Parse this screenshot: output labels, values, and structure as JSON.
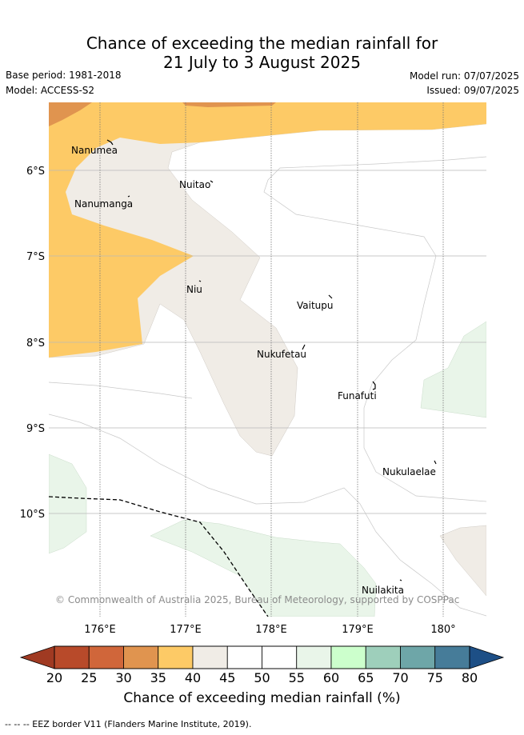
{
  "title_line1": "Chance of exceeding the median rainfall for",
  "title_line2": "21 July to 3 August 2025",
  "meta": {
    "base_period": "Base period: 1981-2018",
    "model": "Model: ACCESS-S2",
    "model_run": "Model run: 07/07/2025",
    "issued": "Issued: 09/07/2025"
  },
  "map": {
    "lat_labels": [
      "6°S",
      "7°S",
      "8°S",
      "9°S",
      "10°S"
    ],
    "lon_labels": [
      "176°E",
      "177°E",
      "178°E",
      "179°E",
      "180°"
    ],
    "places": [
      "Nanumea",
      "Nuitao",
      "Nanumanga",
      "Niu",
      "Vaitupu",
      "Nukufetau",
      "Funafuti",
      "Nukulaelae",
      "Nuilakita"
    ],
    "copyright": "© Commonwealth of Australia 2025, Bureau of Meteorology, supported by COSPPac"
  },
  "colorbar": {
    "ticks": [
      "20",
      "25",
      "30",
      "35",
      "40",
      "45",
      "50",
      "55",
      "60",
      "65",
      "70",
      "75",
      "80"
    ],
    "colors": [
      "#b84a2a",
      "#d0663a",
      "#e0944f",
      "#fdca66",
      "#f0ece6",
      "#ffffff",
      "#ffffff",
      "#e9f5e9",
      "#ccffcc",
      "#9ecfbb",
      "#6ea6a8",
      "#467c99",
      "#1d4f86"
    ],
    "title": "Chance of exceeding median rainfall (%)"
  },
  "footer": "-- -- -- EEZ border V11 (Flanders Marine Institute, 2019)."
}
